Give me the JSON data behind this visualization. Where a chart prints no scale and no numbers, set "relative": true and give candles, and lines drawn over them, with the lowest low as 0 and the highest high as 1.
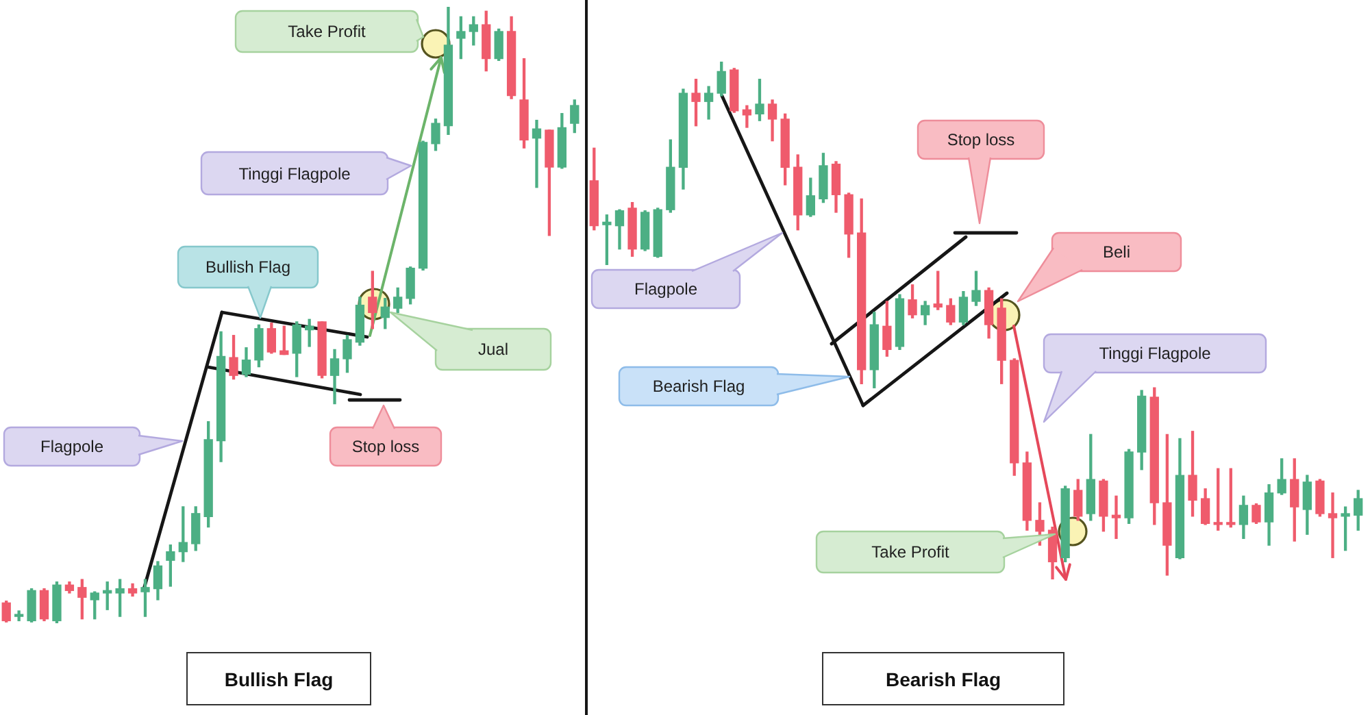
{
  "chart_data": [
    {
      "type": "candlestick",
      "title": "Bullish Flag",
      "relative": true,
      "categories": [
        null,
        null,
        null,
        null,
        null,
        null,
        null,
        null,
        null,
        null,
        null,
        null,
        null,
        null,
        null,
        null,
        null,
        null,
        null,
        null,
        null,
        null,
        null,
        null,
        null,
        null,
        null,
        null,
        null,
        null,
        null,
        null,
        null,
        null,
        null,
        null,
        null,
        null,
        null,
        null,
        null,
        null,
        null,
        null,
        null,
        null
      ],
      "ohlc": [
        [
          0.033,
          0.036,
          0.002,
          0.004
        ],
        [
          0.011,
          0.02,
          0.004,
          0.013
        ],
        [
          0.004,
          0.056,
          0.002,
          0.053
        ],
        [
          0.053,
          0.056,
          0.004,
          0.007
        ],
        [
          0.004,
          0.067,
          0,
          0.062
        ],
        [
          0.062,
          0.067,
          0.049,
          0.053
        ],
        [
          0.058,
          0.071,
          0.007,
          0.042
        ],
        [
          0.038,
          0.051,
          0.007,
          0.049
        ],
        [
          0.049,
          0.067,
          0.022,
          0.053
        ],
        [
          0.049,
          0.071,
          0.011,
          0.056
        ],
        [
          0.056,
          0.064,
          0.044,
          0.049
        ],
        [
          0.051,
          0.071,
          0.011,
          0.058
        ],
        [
          0.056,
          0.1,
          0.038,
          0.093
        ],
        [
          0.102,
          0.127,
          0.06,
          0.116
        ],
        [
          0.116,
          0.189,
          0.1,
          0.131
        ],
        [
          0.129,
          0.189,
          0.118,
          0.178
        ],
        [
          0.173,
          0.327,
          0.156,
          0.298
        ],
        [
          0.296,
          0.473,
          0.262,
          0.433
        ],
        [
          0.431,
          0.467,
          0.396,
          0.402
        ],
        [
          0.404,
          0.447,
          0.4,
          0.427
        ],
        [
          0.427,
          0.484,
          0.416,
          0.478
        ],
        [
          0.478,
          0.487,
          0.438,
          0.44
        ],
        [
          0.442,
          0.482,
          0.436,
          0.436
        ],
        [
          0.438,
          0.489,
          0.4,
          0.484
        ],
        [
          0.476,
          0.493,
          0.449,
          0.482
        ],
        [
          0.489,
          0.489,
          0.398,
          0.402
        ],
        [
          0.402,
          0.444,
          0.356,
          0.429
        ],
        [
          0.429,
          0.467,
          0.407,
          0.46
        ],
        [
          0.456,
          0.529,
          0.451,
          0.516
        ],
        [
          0.529,
          0.571,
          0.478,
          0.504
        ],
        [
          0.496,
          0.527,
          0.478,
          0.513
        ],
        [
          0.511,
          0.544,
          0.504,
          0.529
        ],
        [
          0.527,
          0.578,
          0.518,
          0.576
        ],
        [
          0.576,
          0.782,
          0.573,
          0.78
        ],
        [
          0.778,
          0.818,
          0.767,
          0.811
        ],
        [
          0.807,
          1,
          0.793,
          0.938
        ],
        [
          0.949,
          0.984,
          0.916,
          0.96
        ],
        [
          0.96,
          0.984,
          0.938,
          0.971
        ],
        [
          0.971,
          0.993,
          0.896,
          0.916
        ],
        [
          0.916,
          0.964,
          0.913,
          0.96
        ],
        [
          0.96,
          0.984,
          0.851,
          0.856
        ],
        [
          0.849,
          0.916,
          0.771,
          0.784
        ],
        [
          0.787,
          0.816,
          0.707,
          0.802
        ],
        [
          0.8,
          0.8,
          0.629,
          0.74
        ],
        [
          0.74,
          0.827,
          0.738,
          0.804
        ],
        [
          0.811,
          0.849,
          0.796,
          0.84
        ]
      ],
      "colors": [
        "#ef5b6c",
        "#4caf84",
        "#4caf84",
        "#ef5b6c",
        "#4caf84",
        "#ef5b6c",
        "#ef5b6c",
        "#4caf84",
        "#4caf84",
        "#4caf84",
        "#ef5b6c",
        "#4caf84",
        "#4caf84",
        "#4caf84",
        "#4caf84",
        "#4caf84",
        "#4caf84",
        "#4caf84",
        "#ef5b6c",
        "#4caf84",
        "#4caf84",
        "#ef5b6c",
        "#ef5b6c",
        "#4caf84",
        "#4caf84",
        "#ef5b6c",
        "#4caf84",
        "#4caf84",
        "#4caf84",
        "#ef5b6c",
        "#4caf84",
        "#4caf84",
        "#4caf84",
        "#4caf84",
        "#4caf84",
        "#4caf84",
        "#4caf84",
        "#4caf84",
        "#ef5b6c",
        "#4caf84",
        "#ef5b6c",
        "#ef5b6c",
        "#4caf84",
        "#ef5b6c",
        "#4caf84",
        "#4caf84"
      ],
      "annotations": [
        "Take Profit",
        "Tinggi Flagpole",
        "Bullish Flag",
        "Jual",
        "Flagpole",
        "Stop loss"
      ]
    },
    {
      "type": "candlestick",
      "title": "Bearish Flag",
      "relative": true,
      "categories": [
        null,
        null,
        null,
        null,
        null,
        null,
        null,
        null,
        null,
        null,
        null,
        null,
        null,
        null,
        null,
        null,
        null,
        null,
        null,
        null,
        null,
        null,
        null,
        null,
        null,
        null,
        null,
        null,
        null,
        null,
        null,
        null,
        null,
        null,
        null,
        null,
        null,
        null,
        null,
        null,
        null,
        null,
        null,
        null,
        null,
        null,
        null,
        null,
        null,
        null,
        null,
        null,
        null,
        null,
        null,
        null,
        null,
        null,
        null,
        null,
        null
      ],
      "ohlc": [
        [
          0.77,
          0.833,
          0.675,
          0.683
        ],
        [
          0.685,
          0.704,
          0.608,
          0.69
        ],
        [
          0.683,
          0.714,
          0.638,
          0.712
        ],
        [
          0.717,
          0.728,
          0.624,
          0.638
        ],
        [
          0.638,
          0.712,
          0.635,
          0.709
        ],
        [
          0.624,
          0.717,
          0.622,
          0.714
        ],
        [
          0.714,
          0.849,
          0.709,
          0.796
        ],
        [
          0.796,
          0.947,
          0.754,
          0.939
        ],
        [
          0.939,
          0.966,
          0.876,
          0.923
        ],
        [
          0.923,
          0.952,
          0.889,
          0.939
        ],
        [
          0.939,
          1,
          0.934,
          0.981
        ],
        [
          0.984,
          0.987,
          0.902,
          0.905
        ],
        [
          0.907,
          0.915,
          0.873,
          0.897
        ],
        [
          0.899,
          0.966,
          0.886,
          0.918
        ],
        [
          0.918,
          0.926,
          0.847,
          0.889
        ],
        [
          0.889,
          0.899,
          0.762,
          0.796
        ],
        [
          0.796,
          0.82,
          0.675,
          0.704
        ],
        [
          0.704,
          0.775,
          0.701,
          0.741
        ],
        [
          0.735,
          0.823,
          0.728,
          0.799
        ],
        [
          0.802,
          0.807,
          0.709,
          0.743
        ],
        [
          0.743,
          0.746,
          0.622,
          0.667
        ],
        [
          0.669,
          0.735,
          0.378,
          0.405
        ],
        [
          0.405,
          0.516,
          0.37,
          0.492
        ],
        [
          0.489,
          0.537,
          0.431,
          0.444
        ],
        [
          0.45,
          0.55,
          0.444,
          0.542
        ],
        [
          0.54,
          0.569,
          0.505,
          0.511
        ],
        [
          0.511,
          0.537,
          0.492,
          0.529
        ],
        [
          0.532,
          0.595,
          0.521,
          0.526
        ],
        [
          0.529,
          0.542,
          0.492,
          0.497
        ],
        [
          0.497,
          0.556,
          0.492,
          0.545
        ],
        [
          0.537,
          0.595,
          0.529,
          0.558
        ],
        [
          0.558,
          0.563,
          0.466,
          0.492
        ],
        [
          0.524,
          0.542,
          0.378,
          0.423
        ],
        [
          0.423,
          0.426,
          0.201,
          0.225
        ],
        [
          0.225,
          0.246,
          0.095,
          0.114
        ],
        [
          0.114,
          0.148,
          0.066,
          0.093
        ],
        [
          0.095,
          0.101,
          0,
          0.034
        ],
        [
          0.042,
          0.18,
          0.034,
          0.175
        ],
        [
          0.172,
          0.193,
          0.114,
          0.122
        ],
        [
          0.127,
          0.28,
          0.114,
          0.193
        ],
        [
          0.19,
          0.193,
          0.093,
          0.122
        ],
        [
          0.124,
          0.161,
          0.079,
          0.119
        ],
        [
          0.119,
          0.251,
          0.108,
          0.246
        ],
        [
          0.246,
          0.365,
          0.212,
          0.354
        ],
        [
          0.352,
          0.37,
          0.106,
          0.148
        ],
        [
          0.148,
          0.28,
          0.008,
          0.066
        ],
        [
          0.042,
          0.272,
          0.04,
          0.201
        ],
        [
          0.201,
          0.286,
          0.122,
          0.153
        ],
        [
          0.156,
          0.175,
          0.106,
          0.108
        ],
        [
          0.108,
          0.214,
          0.095,
          0.106
        ],
        [
          0.108,
          0.214,
          0.101,
          0.106
        ],
        [
          0.106,
          0.161,
          0.079,
          0.143
        ],
        [
          0.143,
          0.146,
          0.108,
          0.111
        ],
        [
          0.111,
          0.183,
          0.066,
          0.167
        ],
        [
          0.167,
          0.233,
          0.164,
          0.193
        ],
        [
          0.193,
          0.233,
          0.074,
          0.14
        ],
        [
          0.135,
          0.201,
          0.087,
          0.188
        ],
        [
          0.19,
          0.193,
          0.122,
          0.127
        ],
        [
          0.127,
          0.167,
          0.042,
          0.119
        ],
        [
          0.122,
          0.14,
          0.056,
          0.127
        ],
        [
          0.124,
          0.172,
          0.095,
          0.156
        ]
      ],
      "colors": [
        "#ef5b6c",
        "#4caf84",
        "#4caf84",
        "#ef5b6c",
        "#4caf84",
        "#4caf84",
        "#4caf84",
        "#4caf84",
        "#ef5b6c",
        "#4caf84",
        "#4caf84",
        "#ef5b6c",
        "#ef5b6c",
        "#4caf84",
        "#ef5b6c",
        "#ef5b6c",
        "#ef5b6c",
        "#4caf84",
        "#4caf84",
        "#ef5b6c",
        "#ef5b6c",
        "#ef5b6c",
        "#4caf84",
        "#ef5b6c",
        "#4caf84",
        "#ef5b6c",
        "#4caf84",
        "#ef5b6c",
        "#ef5b6c",
        "#4caf84",
        "#4caf84",
        "#ef5b6c",
        "#ef5b6c",
        "#ef5b6c",
        "#ef5b6c",
        "#ef5b6c",
        "#ef5b6c",
        "#4caf84",
        "#ef5b6c",
        "#4caf84",
        "#ef5b6c",
        "#ef5b6c",
        "#4caf84",
        "#4caf84",
        "#ef5b6c",
        "#ef5b6c",
        "#4caf84",
        "#ef5b6c",
        "#ef5b6c",
        "#ef5b6c",
        "#ef5b6c",
        "#4caf84",
        "#ef5b6c",
        "#4caf84",
        "#4caf84",
        "#ef5b6c",
        "#4caf84",
        "#ef5b6c",
        "#ef5b6c",
        "#4caf84",
        "#4caf84"
      ],
      "annotations": [
        "Stop loss",
        "Beli",
        "Flagpole",
        "Tinggi Flagpole",
        "Bearish Flag",
        "Take Profit"
      ]
    }
  ]
}
